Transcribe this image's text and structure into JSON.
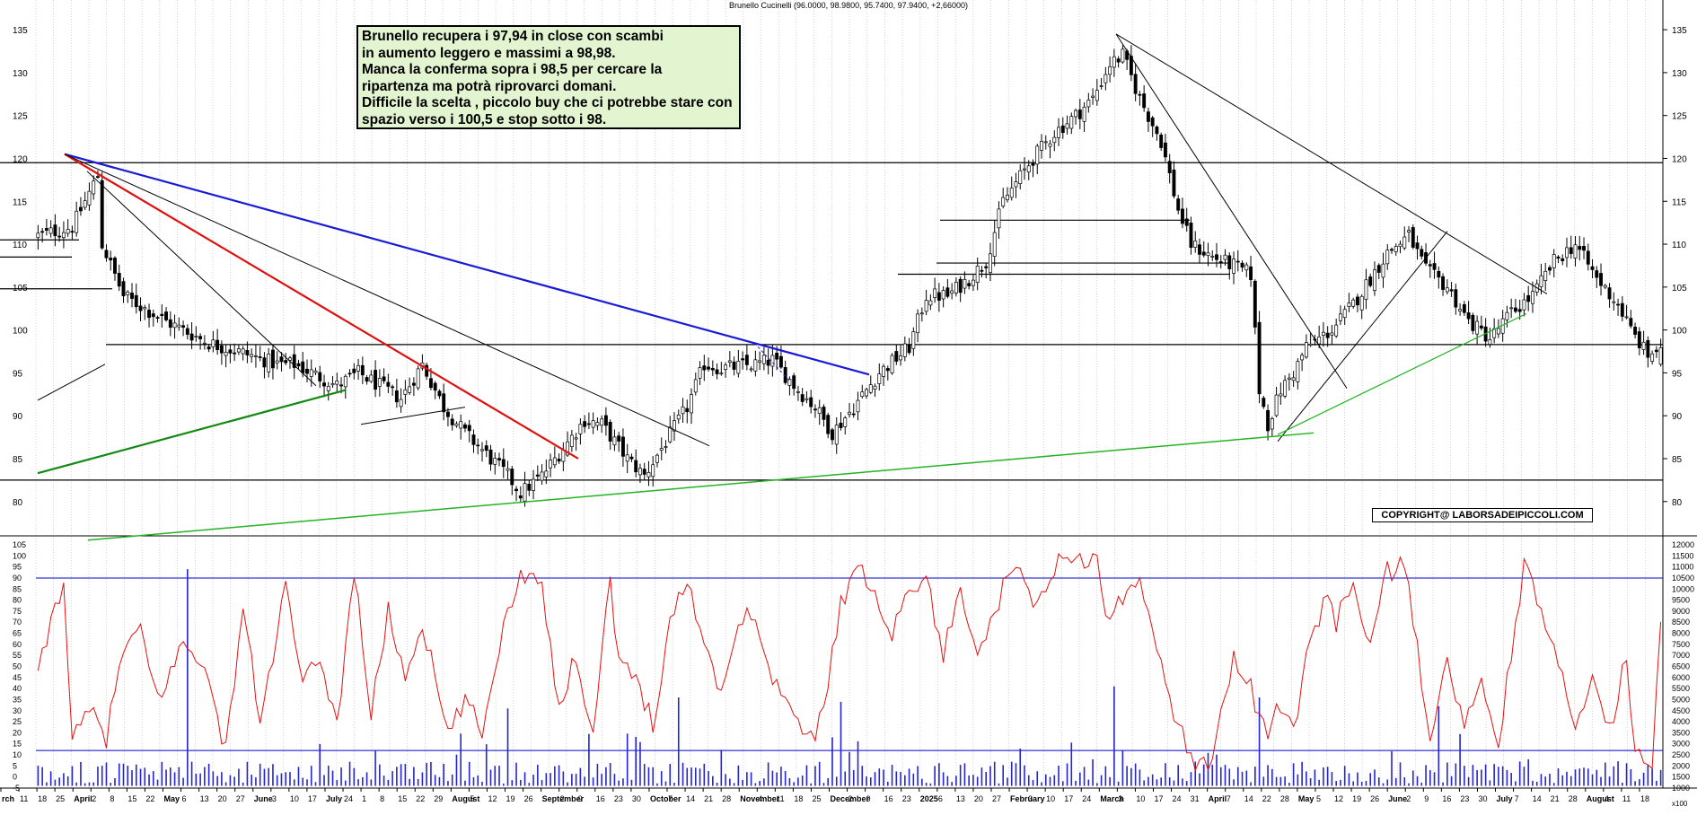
{
  "title": "Brunello Cucinelli (96.0000, 98.9800, 95.7400, 97.9400, +2,66000)",
  "note": [
    "Brunello recupera i 97,94 in close con scambi",
    "in aumento leggero e massimi a 98,98.",
    "Manca la conferma sopra i 98,5 per cercare la",
    "ripartenza ma potrà riprovarci domani.",
    "Difficile la scelta , piccolo buy che ci potrebbe stare con",
    "spazio verso i 100,5 e stop sotto i 98."
  ],
  "copyright": "COPYRIGHT@ LABORSADEIPICCOLI.COM",
  "bottom_right_label": "x100",
  "colors": {
    "ma_line": "#e81010",
    "volume": "#2424d0",
    "h_line": "#0000cc",
    "blue_trend": "#1a1ad6",
    "red_trend": "#e01010",
    "green_dark": "#128a12",
    "green_light": "#22b422"
  },
  "chart_data": [
    {
      "type": "candlestick",
      "title": "Brunello Cucinelli (96.0000, 98.9800, 95.7400, 97.9400, +2,66000)",
      "ylim": [
        76,
        137
      ],
      "y_ticks": [
        80,
        85,
        90,
        95,
        100,
        105,
        110,
        115,
        120,
        125,
        130,
        135
      ],
      "last_bar": {
        "open": 96.0,
        "high": 98.98,
        "low": 95.74,
        "close": 97.94,
        "change": 2.66
      },
      "close_path": [
        [
          0,
          111
        ],
        [
          8,
          112
        ],
        [
          14,
          118
        ],
        [
          15,
          110
        ],
        [
          20,
          104
        ],
        [
          30,
          101
        ],
        [
          40,
          98.5
        ],
        [
          50,
          97
        ],
        [
          56,
          96
        ],
        [
          60,
          96
        ],
        [
          70,
          93.5
        ],
        [
          75,
          95
        ],
        [
          85,
          92
        ],
        [
          90,
          96
        ],
        [
          95,
          91
        ],
        [
          100,
          88
        ],
        [
          110,
          83
        ],
        [
          113,
          81
        ],
        [
          118,
          83
        ],
        [
          128,
          89.5
        ],
        [
          132,
          89
        ],
        [
          138,
          85
        ],
        [
          142,
          83
        ],
        [
          147,
          87
        ],
        [
          152,
          91
        ],
        [
          156,
          96
        ],
        [
          160,
          95.5
        ],
        [
          168,
          96
        ],
        [
          172,
          96.5
        ],
        [
          178,
          93
        ],
        [
          182,
          91
        ],
        [
          186,
          88
        ],
        [
          191,
          91
        ],
        [
          197,
          95
        ],
        [
          204,
          98
        ],
        [
          208,
          104
        ],
        [
          213,
          104
        ],
        [
          218,
          106
        ],
        [
          222,
          108
        ],
        [
          226,
          115
        ],
        [
          233,
          120
        ],
        [
          238,
          123
        ],
        [
          243,
          125
        ],
        [
          247,
          127
        ],
        [
          251,
          131
        ],
        [
          254,
          132
        ],
        [
          258,
          127
        ],
        [
          263,
          122
        ],
        [
          267,
          114
        ],
        [
          270,
          110
        ],
        [
          275,
          108.5
        ],
        [
          280,
          107.5
        ],
        [
          284,
          106.5
        ],
        [
          286,
          93
        ],
        [
          288,
          89
        ],
        [
          291,
          93
        ],
        [
          294,
          95
        ],
        [
          297,
          98
        ],
        [
          303,
          100
        ],
        [
          308,
          103
        ],
        [
          312,
          106
        ],
        [
          316,
          109
        ],
        [
          321,
          111
        ],
        [
          325,
          107
        ],
        [
          330,
          105
        ],
        [
          335,
          101
        ],
        [
          340,
          99
        ],
        [
          345,
          102
        ],
        [
          350,
          104
        ],
        [
          355,
          108
        ],
        [
          360,
          110
        ],
        [
          365,
          106
        ],
        [
          370,
          103
        ],
        [
          373,
          100
        ],
        [
          377,
          97
        ],
        [
          380,
          98
        ]
      ],
      "horizontal_lines": [
        119.5,
        98.3,
        82.5,
        104.8,
        107.8,
        106.5,
        112.8,
        110.5,
        108.5
      ],
      "x_axis_labels": [
        "rch",
        "11",
        "18",
        "25",
        "April",
        "2",
        "8",
        "15",
        "22",
        "May",
        "6",
        "13",
        "20",
        "27",
        "June",
        "3",
        "10",
        "17",
        "July",
        "24",
        "1",
        "8",
        "15",
        "22",
        "29",
        "August",
        "5",
        "12",
        "19",
        "26",
        "September",
        "2",
        "9",
        "16",
        "23",
        "30",
        "October",
        "7",
        "14",
        "21",
        "28",
        "November",
        "4",
        "11",
        "18",
        "25",
        "December",
        "2",
        "9",
        "16",
        "23",
        "2025",
        "6",
        "13",
        "20",
        "27",
        "February",
        "3",
        "10",
        "17",
        "24",
        "March",
        "3",
        "10",
        "17",
        "24",
        "31",
        "April",
        "7",
        "14",
        "22",
        "28",
        "May",
        "5",
        "12",
        "19",
        "26",
        "June",
        "2",
        "9",
        "16",
        "23",
        "30",
        "July",
        "7",
        "14",
        "21",
        "28",
        "August",
        "4",
        "11",
        "18"
      ]
    },
    {
      "type": "line",
      "name": "",
      "ylim": [
        -5,
        105
      ],
      "y_ticks_left": [
        -5,
        0,
        5,
        10,
        15,
        20,
        25,
        30,
        35,
        40,
        45,
        50,
        55,
        60,
        65,
        70,
        75,
        80,
        85,
        90,
        95,
        100,
        105
      ],
      "y_ticks_right": [
        "1000",
        "1500",
        "2000",
        "2500",
        "3000",
        "3500",
        "4000",
        "4500",
        "5000",
        "5500",
        "6000",
        "6500",
        "7000",
        "7500",
        "8000",
        "8500",
        "9000",
        "9500",
        "10000",
        "10500",
        "11000",
        "11500",
        "12000"
      ],
      "reference_lines": [
        90,
        12
      ],
      "oscillator_keypoints": [
        [
          0,
          45
        ],
        [
          3,
          70
        ],
        [
          6,
          90
        ],
        [
          8,
          15
        ],
        [
          12,
          30
        ],
        [
          16,
          18
        ],
        [
          20,
          58
        ],
        [
          24,
          65
        ],
        [
          28,
          35
        ],
        [
          34,
          60
        ],
        [
          38,
          55
        ],
        [
          44,
          12
        ],
        [
          48,
          78
        ],
        [
          52,
          24
        ],
        [
          58,
          86
        ],
        [
          62,
          40
        ],
        [
          66,
          55
        ],
        [
          70,
          23
        ],
        [
          74,
          94
        ],
        [
          78,
          28
        ],
        [
          82,
          75
        ],
        [
          86,
          45
        ],
        [
          90,
          70
        ],
        [
          96,
          18
        ],
        [
          100,
          35
        ],
        [
          104,
          20
        ],
        [
          108,
          60
        ],
        [
          112,
          88
        ],
        [
          116,
          95
        ],
        [
          118,
          88
        ],
        [
          122,
          30
        ],
        [
          126,
          55
        ],
        [
          130,
          20
        ],
        [
          134,
          92
        ],
        [
          136,
          50
        ],
        [
          140,
          45
        ],
        [
          144,
          25
        ],
        [
          148,
          70
        ],
        [
          152,
          90
        ],
        [
          156,
          60
        ],
        [
          160,
          40
        ],
        [
          166,
          80
        ],
        [
          170,
          55
        ],
        [
          176,
          30
        ],
        [
          182,
          15
        ],
        [
          186,
          55
        ],
        [
          188,
          80
        ],
        [
          192,
          93
        ],
        [
          196,
          85
        ],
        [
          200,
          65
        ],
        [
          204,
          85
        ],
        [
          208,
          90
        ],
        [
          212,
          55
        ],
        [
          216,
          85
        ],
        [
          220,
          60
        ],
        [
          224,
          70
        ],
        [
          226,
          85
        ],
        [
          230,
          93
        ],
        [
          234,
          75
        ],
        [
          238,
          96
        ],
        [
          244,
          99
        ],
        [
          248,
          100
        ],
        [
          250,
          70
        ],
        [
          254,
          80
        ],
        [
          258,
          94
        ],
        [
          262,
          55
        ],
        [
          266,
          30
        ],
        [
          270,
          8
        ],
        [
          274,
          5
        ],
        [
          276,
          20
        ],
        [
          280,
          55
        ],
        [
          284,
          40
        ],
        [
          288,
          15
        ],
        [
          290,
          35
        ],
        [
          294,
          20
        ],
        [
          298,
          65
        ],
        [
          302,
          80
        ],
        [
          304,
          70
        ],
        [
          308,
          88
        ],
        [
          312,
          60
        ],
        [
          316,
          93
        ],
        [
          320,
          95
        ],
        [
          322,
          70
        ],
        [
          326,
          20
        ],
        [
          330,
          50
        ],
        [
          334,
          25
        ],
        [
          338,
          40
        ],
        [
          342,
          15
        ],
        [
          346,
          70
        ],
        [
          348,
          95
        ],
        [
          352,
          75
        ],
        [
          356,
          50
        ],
        [
          360,
          22
        ],
        [
          364,
          50
        ],
        [
          368,
          20
        ],
        [
          372,
          55
        ],
        [
          374,
          12
        ],
        [
          378,
          8
        ],
        [
          380,
          72
        ]
      ]
    }
  ]
}
